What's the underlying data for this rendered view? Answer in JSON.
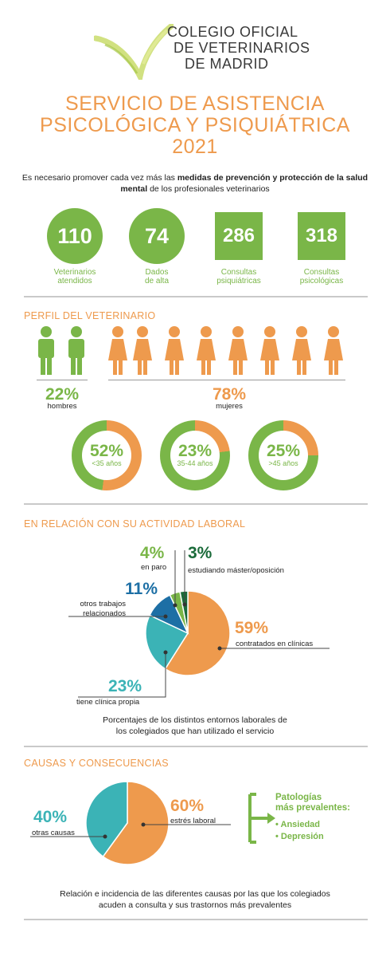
{
  "header": {
    "logo_line1": "COLEGIO OFICIAL",
    "logo_line2": "DE VETERINARIOS",
    "logo_line3": "DE MADRID",
    "title_line1": "SERVICIO DE ASISTENCIA",
    "title_line2": "PSICOLÓGICA Y PSIQUIÁTRICA",
    "title_line3": "2021"
  },
  "intro": {
    "part1": "Es necesario promover cada vez más las ",
    "bold": "medidas de prevención y protección de la salud mental",
    "part2": " de los profesionales veterinarios"
  },
  "stats": [
    {
      "value": "110",
      "label1": "Veterinarios",
      "label2": "atendidos"
    },
    {
      "value": "74",
      "label1": "Dados",
      "label2": "de alta"
    },
    {
      "value": "286",
      "label1": "Consultas",
      "label2": "psiquiátricas"
    },
    {
      "value": "318",
      "label1": "Consultas",
      "label2": "psicológicas"
    }
  ],
  "profile": {
    "title": "PERFIL DEL VETERINARIO",
    "men_pct": "22%",
    "men_label": "hombres",
    "women_pct": "78%",
    "women_label": "mujeres",
    "men_color": "#7ab648",
    "women_color": "#ee9a4d",
    "ages": [
      {
        "pct": "52%",
        "label": "<35 años",
        "value": 52
      },
      {
        "pct": "23%",
        "label": "35-44 años",
        "value": 23
      },
      {
        "pct": "25%",
        "label": ">45 años",
        "value": 25
      }
    ]
  },
  "work": {
    "title": "EN RELACIÓN CON SU ACTIVIDAD LABORAL",
    "slices": [
      {
        "pct": "59%",
        "label": "contratados en clínicas",
        "value": 59,
        "color": "#ee9a4d"
      },
      {
        "pct": "23%",
        "label": "tiene clínica propia",
        "value": 23,
        "color": "#3bb3b6"
      },
      {
        "pct": "11%",
        "label1": "otros trabajos",
        "label2": "relacionados",
        "value": 11,
        "color": "#1d6fa5"
      },
      {
        "pct": "4%",
        "label": "en paro",
        "value": 4,
        "color": "#7ab648"
      },
      {
        "pct": "3%",
        "label": "estudiando máster/oposición",
        "value": 3,
        "color": "#1b6b3a"
      }
    ],
    "caption1": "Porcentajes de los distintos entornos laborales de",
    "caption2": "los colegiados que han utilizado el servicio"
  },
  "causes": {
    "title": "CAUSAS Y CONSECUENCIAS",
    "slices": [
      {
        "pct": "60%",
        "label": "estrés laboral",
        "value": 60,
        "color": "#ee9a4d"
      },
      {
        "pct": "40%",
        "label": "otras causas",
        "value": 40,
        "color": "#3bb3b6"
      }
    ],
    "patologias_title1": "Patologías",
    "patologias_title2": "más prevalentes:",
    "patologias": [
      "Ansiedad",
      "Depresión"
    ],
    "caption1": "Relación e incidencia de las diferentes causas por las que los colegiados",
    "caption2": "acuden a consulta y sus trastornos más prevalentes"
  }
}
